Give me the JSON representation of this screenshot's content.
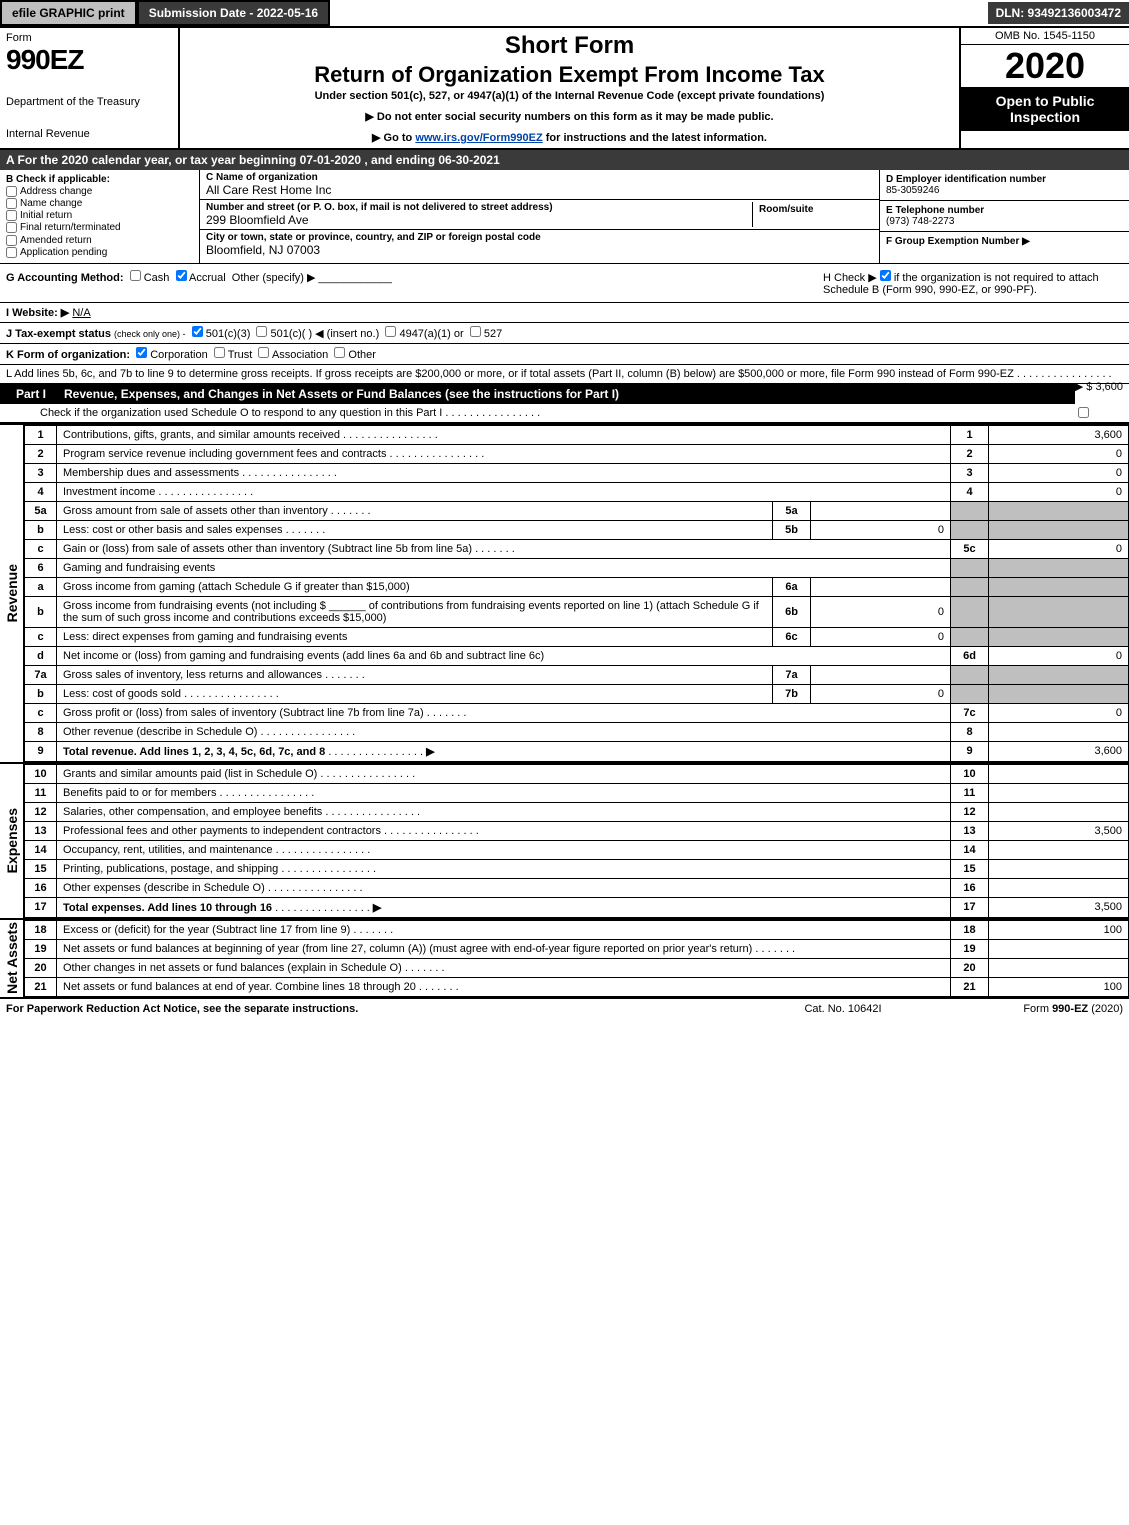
{
  "topbar": {
    "efile": "efile GRAPHIC print",
    "subdate": "Submission Date - 2022-05-16",
    "dln": "DLN: 93492136003472"
  },
  "header": {
    "form_label": "Form",
    "form_number": "990EZ",
    "dept1": "Department of the Treasury",
    "dept2": "Internal Revenue",
    "title1": "Short Form",
    "title2": "Return of Organization Exempt From Income Tax",
    "subtitle": "Under section 501(c), 527, or 4947(a)(1) of the Internal Revenue Code (except private foundations)",
    "warn1": "▶ Do not enter social security numbers on this form as it may be made public.",
    "warn2_pre": "▶ Go to ",
    "warn2_link": "www.irs.gov/Form990EZ",
    "warn2_post": " for instructions and the latest information.",
    "omb": "OMB No. 1545-1150",
    "year": "2020",
    "open": "Open to Public Inspection"
  },
  "taxyear": "A   For the 2020 calendar year, or tax year beginning 07-01-2020 , and ending 06-30-2021",
  "boxB": {
    "title": "B  Check if applicable:",
    "opts": [
      "Address change",
      "Name change",
      "Initial return",
      "Final return/terminated",
      "Amended return",
      "Application pending"
    ]
  },
  "boxC": {
    "name_lbl": "C Name of organization",
    "name": "All Care Rest Home Inc",
    "street_lbl": "Number and street (or P. O. box, if mail is not delivered to street address)",
    "street": "299 Bloomfield Ave",
    "room_lbl": "Room/suite",
    "city_lbl": "City or town, state or province, country, and ZIP or foreign postal code",
    "city": "Bloomfield, NJ  07003"
  },
  "boxD": {
    "ein_lbl": "D Employer identification number",
    "ein": "85-3059246",
    "tel_lbl": "E Telephone number",
    "tel": "(973) 748-2273",
    "grp_lbl": "F Group Exemption Number   ▶"
  },
  "rowG": {
    "label": "G Accounting Method:",
    "cash": "Cash",
    "accrual": "Accrual",
    "other": "Other (specify) ▶"
  },
  "rowH": {
    "pre": "H   Check ▶",
    "post": "if the organization is not required to attach Schedule B (Form 990, 990-EZ, or 990-PF)."
  },
  "rowI": {
    "label": "I Website: ▶",
    "value": "N/A"
  },
  "rowJ": {
    "label": "J Tax-exempt status",
    "sub": "(check only one) -",
    "o1": "501(c)(3)",
    "o2": "501(c)(  )  ◀ (insert no.)",
    "o3": "4947(a)(1) or",
    "o4": "527"
  },
  "rowK": {
    "label": "K Form of organization:",
    "o1": "Corporation",
    "o2": "Trust",
    "o3": "Association",
    "o4": "Other"
  },
  "rowL": {
    "text": "L Add lines 5b, 6c, and 7b to line 9 to determine gross receipts. If gross receipts are $200,000 or more, or if total assets (Part II, column (B) below) are $500,000 or more, file Form 990 instead of Form 990-EZ",
    "amt": "▶ $ 3,600"
  },
  "partI": {
    "label": "Part I",
    "title": "Revenue, Expenses, and Changes in Net Assets or Fund Balances (see the instructions for Part I)",
    "check": "Check if the organization used Schedule O to respond to any question in this Part I"
  },
  "revenue_label": "Revenue",
  "expenses_label": "Expenses",
  "netassets_label": "Net Assets",
  "lines": {
    "l1": {
      "n": "1",
      "d": "Contributions, gifts, grants, and similar amounts received",
      "ln": "1",
      "a": "3,600"
    },
    "l2": {
      "n": "2",
      "d": "Program service revenue including government fees and contracts",
      "ln": "2",
      "a": "0"
    },
    "l3": {
      "n": "3",
      "d": "Membership dues and assessments",
      "ln": "3",
      "a": "0"
    },
    "l4": {
      "n": "4",
      "d": "Investment income",
      "ln": "4",
      "a": "0"
    },
    "l5a": {
      "n": "5a",
      "d": "Gross amount from sale of assets other than inventory",
      "sn": "5a",
      "sa": ""
    },
    "l5b": {
      "n": "b",
      "d": "Less: cost or other basis and sales expenses",
      "sn": "5b",
      "sa": "0"
    },
    "l5c": {
      "n": "c",
      "d": "Gain or (loss) from sale of assets other than inventory (Subtract line 5b from line 5a)",
      "ln": "5c",
      "a": "0"
    },
    "l6": {
      "n": "6",
      "d": "Gaming and fundraising events"
    },
    "l6a": {
      "n": "a",
      "d": "Gross income from gaming (attach Schedule G if greater than $15,000)",
      "sn": "6a",
      "sa": ""
    },
    "l6b": {
      "n": "b",
      "d1": "Gross income from fundraising events (not including $",
      "d2": "of contributions from fundraising events reported on line 1) (attach Schedule G if the sum of such gross income and contributions exceeds $15,000)",
      "sn": "6b",
      "sa": "0"
    },
    "l6c": {
      "n": "c",
      "d": "Less: direct expenses from gaming and fundraising events",
      "sn": "6c",
      "sa": "0"
    },
    "l6d": {
      "n": "d",
      "d": "Net income or (loss) from gaming and fundraising events (add lines 6a and 6b and subtract line 6c)",
      "ln": "6d",
      "a": "0"
    },
    "l7a": {
      "n": "7a",
      "d": "Gross sales of inventory, less returns and allowances",
      "sn": "7a",
      "sa": ""
    },
    "l7b": {
      "n": "b",
      "d": "Less: cost of goods sold",
      "sn": "7b",
      "sa": "0"
    },
    "l7c": {
      "n": "c",
      "d": "Gross profit or (loss) from sales of inventory (Subtract line 7b from line 7a)",
      "ln": "7c",
      "a": "0"
    },
    "l8": {
      "n": "8",
      "d": "Other revenue (describe in Schedule O)",
      "ln": "8",
      "a": ""
    },
    "l9": {
      "n": "9",
      "d": "Total revenue. Add lines 1, 2, 3, 4, 5c, 6d, 7c, and 8",
      "ln": "9",
      "a": "3,600",
      "bold": true,
      "arrow": true
    },
    "l10": {
      "n": "10",
      "d": "Grants and similar amounts paid (list in Schedule O)",
      "ln": "10",
      "a": ""
    },
    "l11": {
      "n": "11",
      "d": "Benefits paid to or for members",
      "ln": "11",
      "a": ""
    },
    "l12": {
      "n": "12",
      "d": "Salaries, other compensation, and employee benefits",
      "ln": "12",
      "a": ""
    },
    "l13": {
      "n": "13",
      "d": "Professional fees and other payments to independent contractors",
      "ln": "13",
      "a": "3,500"
    },
    "l14": {
      "n": "14",
      "d": "Occupancy, rent, utilities, and maintenance",
      "ln": "14",
      "a": ""
    },
    "l15": {
      "n": "15",
      "d": "Printing, publications, postage, and shipping",
      "ln": "15",
      "a": ""
    },
    "l16": {
      "n": "16",
      "d": "Other expenses (describe in Schedule O)",
      "ln": "16",
      "a": ""
    },
    "l17": {
      "n": "17",
      "d": "Total expenses. Add lines 10 through 16",
      "ln": "17",
      "a": "3,500",
      "bold": true,
      "arrow": true
    },
    "l18": {
      "n": "18",
      "d": "Excess or (deficit) for the year (Subtract line 17 from line 9)",
      "ln": "18",
      "a": "100"
    },
    "l19": {
      "n": "19",
      "d": "Net assets or fund balances at beginning of year (from line 27, column (A)) (must agree with end-of-year figure reported on prior year's return)",
      "ln": "19",
      "a": ""
    },
    "l20": {
      "n": "20",
      "d": "Other changes in net assets or fund balances (explain in Schedule O)",
      "ln": "20",
      "a": ""
    },
    "l21": {
      "n": "21",
      "d": "Net assets or fund balances at end of year. Combine lines 18 through 20",
      "ln": "21",
      "a": "100"
    }
  },
  "footer": {
    "left": "For Paperwork Reduction Act Notice, see the separate instructions.",
    "mid": "Cat. No. 10642I",
    "right_pre": "Form ",
    "right_form": "990-EZ",
    "right_post": " (2020)"
  },
  "colors": {
    "dark": "#3a3a3a",
    "grey": "#bfbfbf",
    "link": "#0044aa"
  }
}
